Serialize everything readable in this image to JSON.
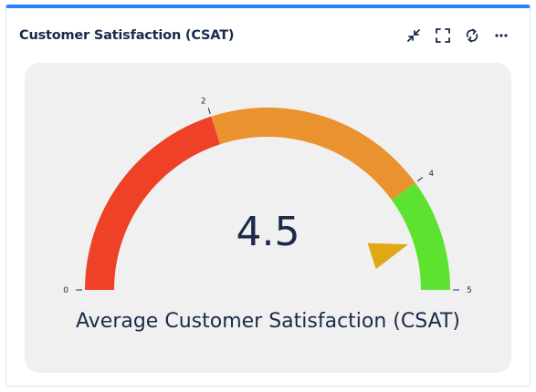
{
  "widget": {
    "title": "Customer Satisfaction (CSAT)",
    "actions": [
      {
        "icon": "minimize-icon"
      },
      {
        "icon": "fullscreen-icon"
      },
      {
        "icon": "refresh-icon"
      },
      {
        "icon": "more-icon"
      }
    ]
  },
  "chart_data": {
    "type": "gauge",
    "value": 4.5,
    "value_label": "4.5",
    "caption": "Average Customer Satisfaction (CSAT)",
    "min": 0,
    "max": 5,
    "ticks": [
      "0",
      "2",
      "4",
      "5"
    ],
    "bands": [
      {
        "from": 0,
        "to": 2,
        "color": "#ee4128"
      },
      {
        "from": 2,
        "to": 4,
        "color": "#ea922d"
      },
      {
        "from": 4,
        "to": 5,
        "color": "#5ce22f"
      }
    ],
    "pointer_color": "#e0a812"
  }
}
